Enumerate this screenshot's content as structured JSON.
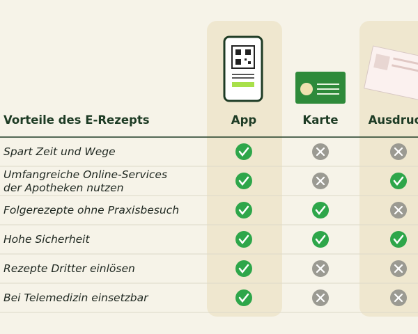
{
  "table": {
    "title": "Vorteile des E-Rezepts",
    "columns": [
      "App",
      "Karte",
      "Ausdruck"
    ],
    "rows": [
      {
        "label": "Spart Zeit und Wege",
        "values": [
          true,
          false,
          false
        ]
      },
      {
        "label": "Umfangreiche Online-Services\nder Apotheken nutzen",
        "values": [
          true,
          false,
          true
        ]
      },
      {
        "label": "Folgerezepte ohne Praxisbesuch",
        "values": [
          true,
          true,
          false
        ]
      },
      {
        "label": "Hohe Sicherheit",
        "values": [
          true,
          true,
          true
        ]
      },
      {
        "label": "Rezepte Dritter einlösen",
        "values": [
          true,
          false,
          false
        ]
      },
      {
        "label": "Bei Telemedizin einsetzbar",
        "values": [
          true,
          false,
          false
        ]
      }
    ]
  }
}
